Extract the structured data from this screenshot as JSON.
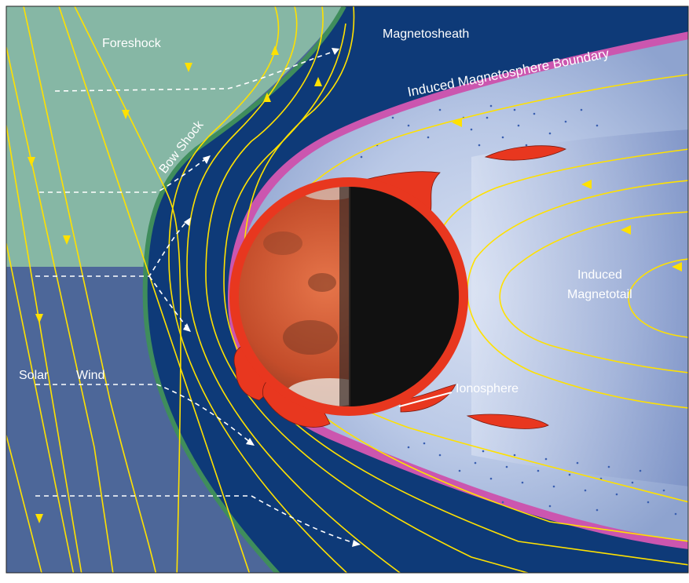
{
  "labels": {
    "foreshock": "Foreshock",
    "magnetosheath": "Magnetosheath",
    "imb": "Induced Magnetosphere Boundary",
    "bow_shock": "Bow Shock",
    "induced_magnetotail_1": "Induced",
    "induced_magnetotail_2": "Magnetotail",
    "solar_wind_1": "Solar",
    "solar_wind_2": "Wind",
    "ionosphere": "Ionosphere"
  },
  "colors": {
    "solar_wind": "#4d6799",
    "foreshock": "#7fb3a3",
    "bow_shock": "#3e8a5a",
    "magnetosheath": "#0d3a78",
    "magnetosphere_edge": "#e05ab5",
    "magnetosphere_inner": "#c7d3ec",
    "field_line": "#ffe100",
    "ionosphere": "#e8371f",
    "mars": "#c8502e",
    "night_side": "#111111",
    "flow_arrow": "#ffffff"
  },
  "icons": {
    "field_arrow": "yellow-triangle-arrow",
    "flow_arrow": "white-dashed-arrow"
  }
}
